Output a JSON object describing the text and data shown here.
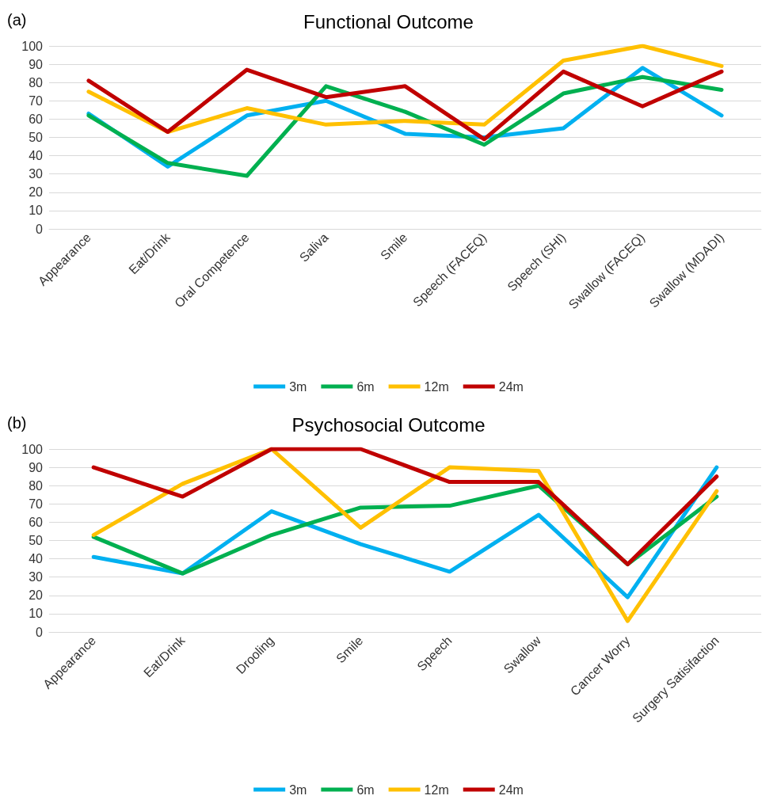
{
  "chart_data": [
    {
      "type": "line",
      "title": "Functional Outcome",
      "annotations": [
        "(a)"
      ],
      "categories": [
        "Appearance",
        "Eat/Drink",
        "Oral Competence",
        "Saliva",
        "Smile",
        "Speech (FACEQ)",
        "Speech (SHI)",
        "Swallow (FACEQ)",
        "Swallow (MDADI)"
      ],
      "series": [
        {
          "name": "3m",
          "color": "#00b0f0",
          "values": [
            63,
            34,
            62,
            70,
            52,
            50,
            55,
            88,
            62
          ]
        },
        {
          "name": "6m",
          "color": "#00b050",
          "values": [
            62,
            36,
            29,
            78,
            64,
            46,
            74,
            83,
            76
          ]
        },
        {
          "name": "12m",
          "color": "#ffc000",
          "values": [
            75,
            53,
            66,
            57,
            59,
            57,
            92,
            100,
            89
          ]
        },
        {
          "name": "24m",
          "color": "#c00000",
          "values": [
            81,
            53,
            87,
            72,
            78,
            49,
            86,
            67,
            86
          ]
        }
      ],
      "ylim": [
        0,
        100
      ],
      "yticks": [
        0,
        10,
        20,
        30,
        40,
        50,
        60,
        70,
        80,
        90,
        100
      ],
      "grid": "y",
      "legend": "bottom",
      "marker": "none",
      "line_style": "solid"
    },
    {
      "type": "line",
      "title": "Psychosocial Outcome",
      "annotations": [
        "(b)"
      ],
      "categories": [
        "Appearance",
        "Eat/Drink",
        "Drooling",
        "Smile",
        "Speech",
        "Swallow",
        "Cancer Worry",
        "Surgery Satisifaction"
      ],
      "series": [
        {
          "name": "3m",
          "color": "#00b0f0",
          "values": [
            41,
            32,
            66,
            48,
            33,
            64,
            19,
            90
          ]
        },
        {
          "name": "6m",
          "color": "#00b050",
          "values": [
            52,
            32,
            53,
            68,
            69,
            80,
            37,
            74
          ]
        },
        {
          "name": "12m",
          "color": "#ffc000",
          "values": [
            53,
            81,
            100,
            57,
            90,
            88,
            6,
            77
          ]
        },
        {
          "name": "24m",
          "color": "#c00000",
          "values": [
            90,
            74,
            100,
            100,
            82,
            82,
            37,
            85
          ]
        }
      ],
      "ylim": [
        0,
        100
      ],
      "yticks": [
        0,
        10,
        20,
        30,
        40,
        50,
        60,
        70,
        80,
        90,
        100
      ],
      "grid": "y",
      "legend": "bottom",
      "marker": "none",
      "line_style": "solid"
    }
  ]
}
